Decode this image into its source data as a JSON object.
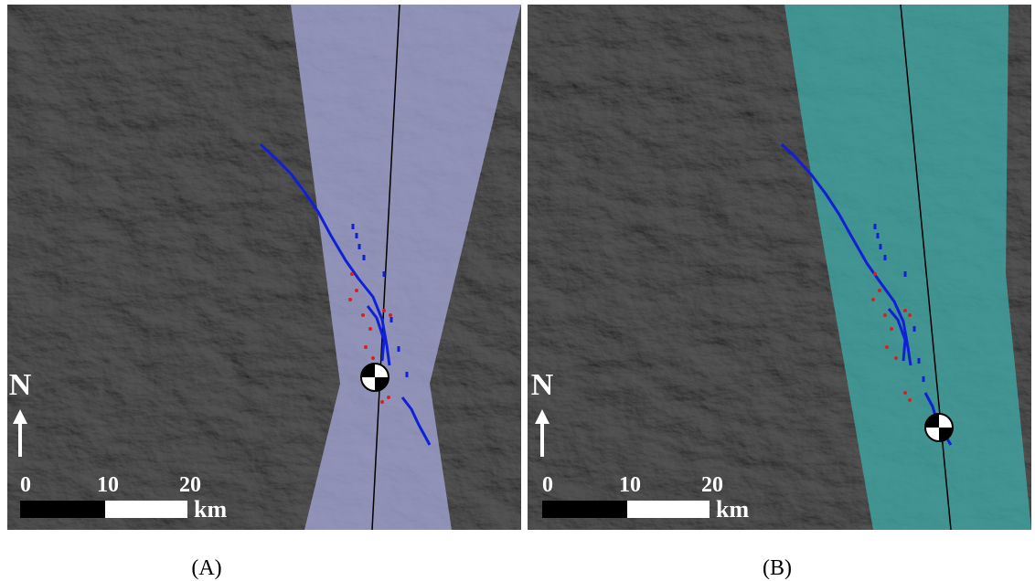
{
  "panels": [
    {
      "north": "N",
      "scale_labels": [
        "0",
        "10",
        "20"
      ],
      "unit": "km",
      "caption": "(A)"
    },
    {
      "north": "N",
      "scale_labels": [
        "0",
        "10",
        "20"
      ],
      "unit": "km",
      "caption": "(B)"
    }
  ]
}
